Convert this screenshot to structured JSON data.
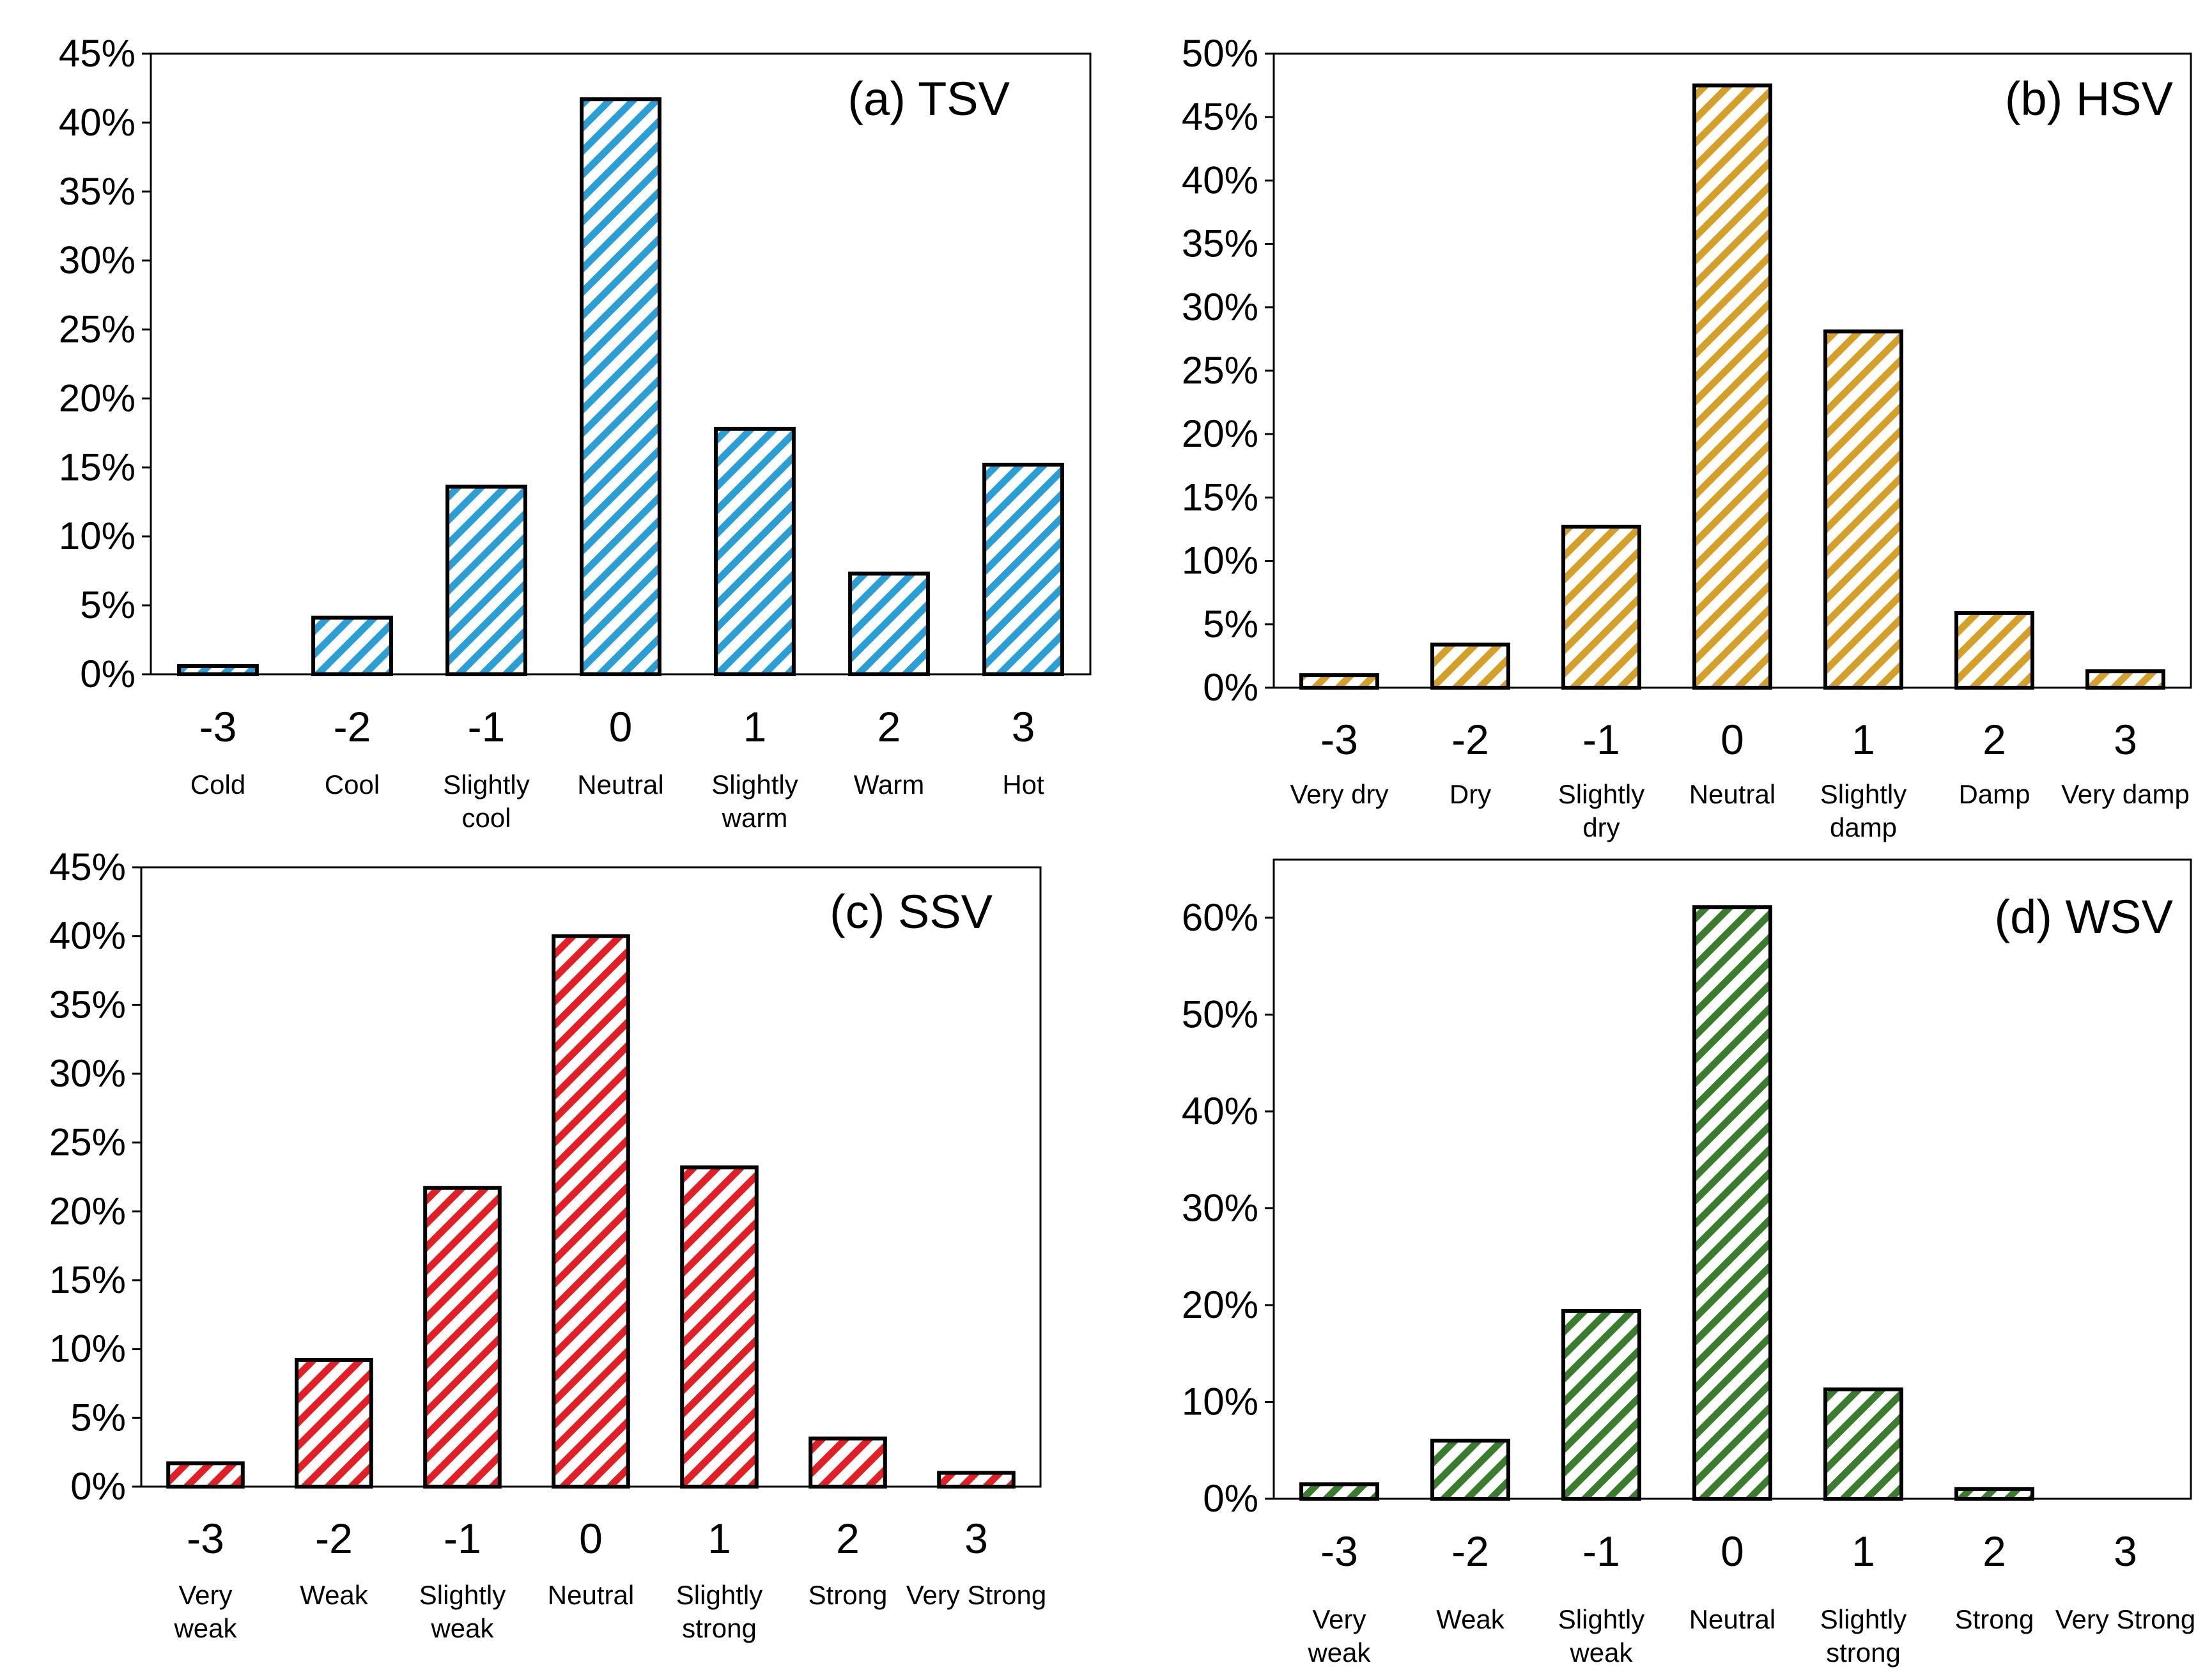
{
  "colors": {
    "tsv": "#2a9fd6",
    "hsv": "#d4a028",
    "ssv": "#e31e24",
    "wsv": "#3a7d2c",
    "outline": "#000000"
  },
  "chart_data": [
    {
      "type": "bar",
      "title": "(a) TSV",
      "categories": [
        "-3",
        "-2",
        "-1",
        "0",
        "1",
        "2",
        "3"
      ],
      "category_names": [
        [
          "Cold"
        ],
        [
          "Cool"
        ],
        [
          "Slightly",
          "cool"
        ],
        [
          "Neutral"
        ],
        [
          "Slightly",
          "warm"
        ],
        [
          "Warm"
        ],
        [
          "Hot"
        ]
      ],
      "values": [
        0.6,
        4.1,
        13.6,
        41.7,
        17.8,
        7.3,
        15.2
      ],
      "ylim": [
        0,
        45
      ],
      "yticks": [
        0,
        5,
        10,
        15,
        20,
        25,
        30,
        35,
        40,
        45
      ],
      "ytick_labels": [
        "0%",
        "5%",
        "10%",
        "15%",
        "20%",
        "25%",
        "30%",
        "35%",
        "40%",
        "45%"
      ],
      "color_key": "tsv",
      "xlabel": "",
      "ylabel": ""
    },
    {
      "type": "bar",
      "title": "(b) HSV",
      "categories": [
        "-3",
        "-2",
        "-1",
        "0",
        "1",
        "2",
        "3"
      ],
      "category_names": [
        [
          "Very dry"
        ],
        [
          "Dry"
        ],
        [
          "Slightly",
          "dry"
        ],
        [
          "Neutral"
        ],
        [
          "Slightly",
          "damp"
        ],
        [
          "Damp"
        ],
        [
          "Very damp"
        ]
      ],
      "values": [
        1.0,
        3.4,
        12.7,
        47.5,
        28.1,
        5.9,
        1.3
      ],
      "ylim": [
        0,
        50
      ],
      "yticks": [
        0,
        5,
        10,
        15,
        20,
        25,
        30,
        35,
        40,
        45,
        50
      ],
      "ytick_labels": [
        "0%",
        "5%",
        "10%",
        "15%",
        "20%",
        "25%",
        "30%",
        "35%",
        "40%",
        "45%",
        "50%"
      ],
      "color_key": "hsv",
      "xlabel": "",
      "ylabel": ""
    },
    {
      "type": "bar",
      "title": "(c) SSV",
      "categories": [
        "-3",
        "-2",
        "-1",
        "0",
        "1",
        "2",
        "3"
      ],
      "category_names": [
        [
          "Very",
          "weak"
        ],
        [
          "Weak"
        ],
        [
          "Slightly",
          "weak"
        ],
        [
          "Neutral"
        ],
        [
          "Slightly",
          "strong"
        ],
        [
          "Strong"
        ],
        [
          "Very Strong"
        ]
      ],
      "values": [
        1.7,
        9.2,
        21.7,
        40.0,
        23.2,
        3.5,
        1.0
      ],
      "ylim": [
        0,
        45
      ],
      "yticks": [
        0,
        5,
        10,
        15,
        20,
        25,
        30,
        35,
        40,
        45
      ],
      "ytick_labels": [
        "0%",
        "5%",
        "10%",
        "15%",
        "20%",
        "25%",
        "30%",
        "35%",
        "40%",
        "45%"
      ],
      "color_key": "ssv",
      "xlabel": "",
      "ylabel": ""
    },
    {
      "type": "bar",
      "title": "(d) WSV",
      "categories": [
        "-3",
        "-2",
        "-1",
        "0",
        "1",
        "2",
        "3"
      ],
      "category_names": [
        [
          "Very",
          "weak"
        ],
        [
          "Weak"
        ],
        [
          "Slightly",
          "weak"
        ],
        [
          "Neutral"
        ],
        [
          "Slightly",
          "strong"
        ],
        [
          "Strong"
        ],
        [
          "Very Strong"
        ]
      ],
      "values": [
        1.5,
        6.0,
        19.4,
        61.1,
        11.3,
        1.0,
        0
      ],
      "ylim": [
        0,
        66
      ],
      "yticks": [
        0,
        10,
        20,
        30,
        40,
        50,
        60
      ],
      "ytick_labels": [
        "0%",
        "10%",
        "20%",
        "30%",
        "40%",
        "50%",
        "60%"
      ],
      "color_key": "wsv",
      "xlabel": "",
      "ylabel": ""
    }
  ]
}
